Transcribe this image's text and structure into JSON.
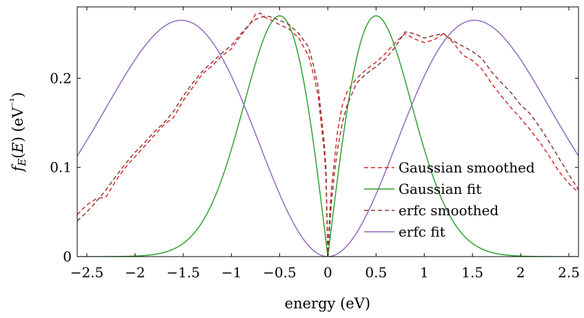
{
  "chart_data": {
    "type": "line",
    "xlabel": "energy (eV)",
    "ylabel": "f_E(E) (eV⁻¹)",
    "xlim": [
      -2.6,
      2.6
    ],
    "ylim": [
      0,
      0.28
    ],
    "xticks": [
      -2.5,
      -2,
      -1.5,
      -1,
      -0.5,
      0,
      0.5,
      1,
      1.5,
      2,
      2.5
    ],
    "xtick_labels": [
      "−2.5",
      "−2",
      "−1.5",
      "−1",
      "−0.5",
      "0",
      "0.5",
      "1",
      "1.5",
      "2",
      "2.5"
    ],
    "yticks": [
      0,
      0.1,
      0.2
    ],
    "ytick_labels": [
      "0",
      "0.1",
      "0.2"
    ],
    "grid": false,
    "legend_position": "bottom-right",
    "series": [
      {
        "name": "Gaussian smoothed",
        "color": "#d62728",
        "style": "dashed",
        "x": [
          -2.6,
          -2.5,
          -2.4,
          -2.3,
          -2.2,
          -2.1,
          -2.0,
          -1.9,
          -1.8,
          -1.7,
          -1.6,
          -1.5,
          -1.4,
          -1.3,
          -1.2,
          -1.1,
          -1.0,
          -0.9,
          -0.8,
          -0.75,
          -0.7,
          -0.65,
          -0.6,
          -0.5,
          -0.4,
          -0.3,
          -0.2,
          -0.15,
          -0.1,
          -0.07,
          -0.04,
          -0.02,
          0.0,
          0.02,
          0.04,
          0.07,
          0.1,
          0.15,
          0.2,
          0.3,
          0.4,
          0.5,
          0.6,
          0.7,
          0.8,
          0.9,
          1.0,
          1.1,
          1.2,
          1.3,
          1.4,
          1.5,
          1.6,
          1.7,
          1.8,
          1.9,
          2.0,
          2.1,
          2.2,
          2.3,
          2.4,
          2.5,
          2.6
        ],
        "y": [
          0.047,
          0.058,
          0.065,
          0.067,
          0.085,
          0.1,
          0.112,
          0.124,
          0.136,
          0.148,
          0.156,
          0.175,
          0.19,
          0.205,
          0.214,
          0.225,
          0.233,
          0.248,
          0.262,
          0.272,
          0.273,
          0.268,
          0.266,
          0.26,
          0.255,
          0.245,
          0.225,
          0.205,
          0.18,
          0.15,
          0.12,
          0.09,
          0.0,
          0.05,
          0.08,
          0.11,
          0.14,
          0.17,
          0.185,
          0.2,
          0.21,
          0.218,
          0.228,
          0.24,
          0.25,
          0.244,
          0.24,
          0.243,
          0.25,
          0.24,
          0.226,
          0.22,
          0.21,
          0.194,
          0.18,
          0.167,
          0.155,
          0.142,
          0.128,
          0.112,
          0.095,
          0.082,
          0.072
        ]
      },
      {
        "name": "Gaussian fit",
        "color": "#2ca02c",
        "style": "solid",
        "model": "gaussian",
        "peak": 0.27,
        "peak_x": 0.5
      },
      {
        "name": "erfc smoothed",
        "color": "#8c3333",
        "style": "dashed",
        "x": [
          -2.6,
          -2.5,
          -2.4,
          -2.3,
          -2.2,
          -2.1,
          -2.0,
          -1.9,
          -1.8,
          -1.7,
          -1.6,
          -1.5,
          -1.4,
          -1.3,
          -1.2,
          -1.1,
          -1.0,
          -0.9,
          -0.8,
          -0.75,
          -0.7,
          -0.65,
          -0.6,
          -0.5,
          -0.4,
          -0.3,
          -0.2,
          -0.15,
          -0.1,
          -0.07,
          -0.04,
          -0.02,
          0.0,
          0.02,
          0.04,
          0.07,
          0.1,
          0.15,
          0.2,
          0.3,
          0.4,
          0.5,
          0.6,
          0.7,
          0.8,
          0.9,
          1.0,
          1.1,
          1.2,
          1.3,
          1.4,
          1.5,
          1.6,
          1.7,
          1.8,
          1.9,
          2.0,
          2.1,
          2.2,
          2.3,
          2.4,
          2.5,
          2.6
        ],
        "y": [
          0.04,
          0.05,
          0.062,
          0.075,
          0.09,
          0.104,
          0.117,
          0.128,
          0.14,
          0.15,
          0.163,
          0.18,
          0.195,
          0.208,
          0.218,
          0.228,
          0.237,
          0.25,
          0.262,
          0.266,
          0.268,
          0.27,
          0.269,
          0.265,
          0.26,
          0.25,
          0.235,
          0.215,
          0.19,
          0.16,
          0.13,
          0.1,
          0.0,
          0.035,
          0.065,
          0.095,
          0.12,
          0.15,
          0.17,
          0.195,
          0.205,
          0.213,
          0.222,
          0.235,
          0.252,
          0.25,
          0.245,
          0.248,
          0.25,
          0.242,
          0.236,
          0.23,
          0.222,
          0.207,
          0.195,
          0.184,
          0.17,
          0.16,
          0.145,
          0.128,
          0.11,
          0.092,
          0.075
        ]
      },
      {
        "name": "erfc fit",
        "color": "#9467bd",
        "style": "solid",
        "model": "erfc",
        "peak": 0.265,
        "peak_x": 1.52
      }
    ]
  }
}
